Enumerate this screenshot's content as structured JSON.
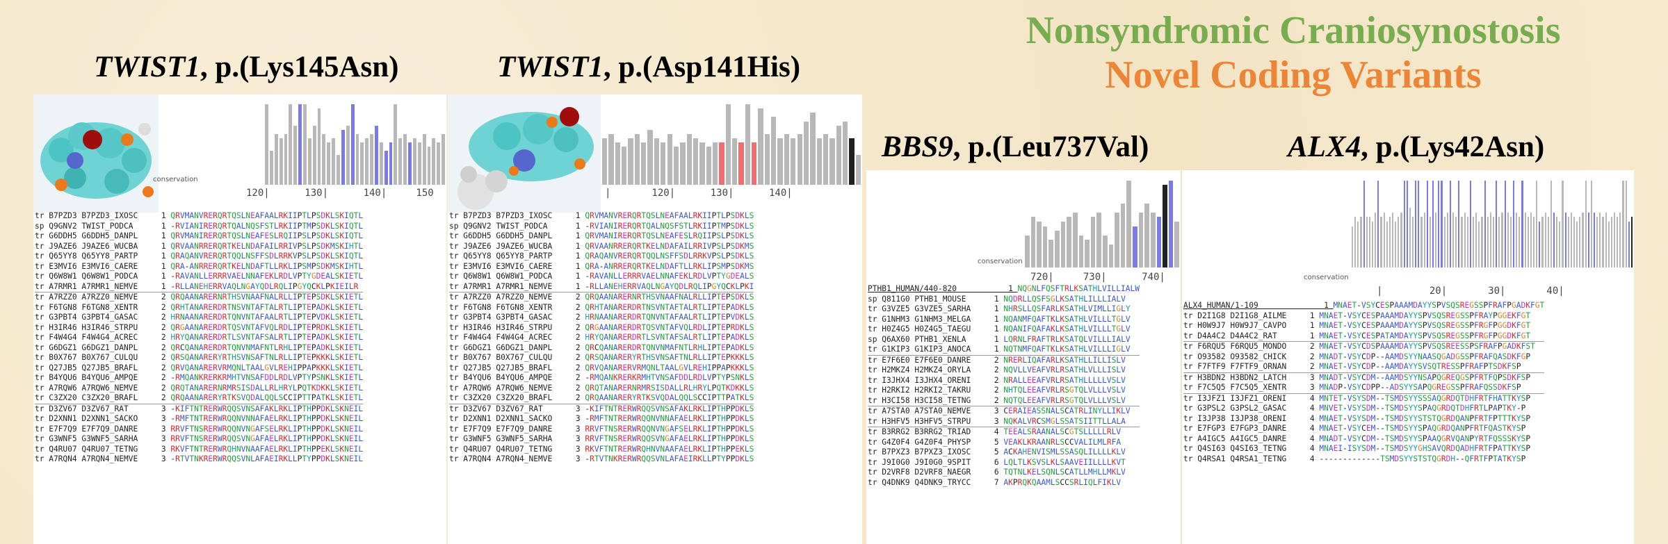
{
  "header": {
    "line1": "Nonsyndromic Craniosynostosis",
    "line2": "Novel Coding Variants"
  },
  "colors": {
    "green": "#78ad4f",
    "orange": "#ec8537",
    "blue_bar": "#7b7be8",
    "red_bar": "#ec7070",
    "grey_bar": "#b8b8b8"
  },
  "panels": [
    {
      "gene": "TWIST1",
      "variant": ", p.(Lys145Asn)",
      "cons_label": "conservation",
      "ruler": "120|      130|      140|     150",
      "bars": [
        0,
        0,
        0,
        0,
        0,
        0,
        0,
        0,
        0,
        0,
        0,
        0,
        0,
        0,
        0,
        0,
        0,
        0,
        0,
        0,
        0,
        0,
        0.95,
        0.4,
        0.6,
        0.55,
        0.6,
        0.95,
        0.7,
        0.95,
        0.95,
        0.55,
        0.7,
        0.9,
        0.6,
        0.5,
        0.55,
        0.35,
        0.65,
        0.7,
        0.95,
        0.6,
        0.5,
        0.55,
        0.6,
        0.7,
        0.5,
        0.4,
        0.5,
        0.95,
        0.55,
        0.6,
        0.5,
        0.55,
        0.5,
        0.6,
        0.45,
        0.55,
        0.5,
        0.6
      ],
      "bar_colors": "bggggbgbbgggbgggggggbggggggggbggggggggbg",
      "rows": [
        [
          "tr",
          "B7PZD3",
          "B7PZD3_IXOSC",
          "1",
          "QRVMANVRERQRTQSLNEAFAALRKIIPTLPSDKLSKIQTL"
        ],
        [
          "sp",
          "Q9GNV2",
          "TWIST_PODCA",
          "1",
          "-RVIANIRERQRTQALNQSFSTLRKIIPTMPSDKLSKIQTL"
        ],
        [
          "tr",
          "G6DDH5",
          "G6DDH5_DANPL",
          "1",
          "QRVMANIRERQRTQSLNEAFESLRQIIPSLPSDKLSKIQTL"
        ],
        [
          "tr",
          "J9AZE6",
          "J9AZE6_WUCBA",
          "1",
          "QRVAANRRERQRTKELNDAFAILRRIVPSLPSDKMSKIHTL"
        ],
        [
          "tr",
          "Q65YY8",
          "Q65YY8_PARTP",
          "1",
          "QRAQANVRERQRTQQLNSFFSDLRRKVPSLPSDKLSKIQTL"
        ],
        [
          "tr",
          "E3MVI6",
          "E3MVI6_CAERE",
          "1",
          "QRA-ANRRERQRTKELNDAFTLLRKLIPSMPSDKMSKIHTL"
        ],
        [
          "tr",
          "Q6W8W1",
          "Q6W8W1_PODCA",
          "1",
          "-RAVANLLERRRVAELNNAFEKLRDLVPTYGDEALSKIETL"
        ],
        [
          "tr",
          "A7RMR1",
          "A7RMR1_NEMVE",
          "1",
          "-RLLANEHERRVAQLNGAYQDLRQLIPGYQCKLPKIEILR"
        ],
        [
          "tr",
          "A7RZZ0",
          "A7RZZ0_NEMVE",
          "2",
          "QRQAANARERNRTHSVNAAFNALRLLIPTEPSDKLSKIETL",
          "sep"
        ],
        [
          "tr",
          "F6TGN8",
          "F6TGN8_XENTR",
          "2",
          "QRHTANARERDRTNSVNTAFTALRTLIPTEPADKLSKIETL"
        ],
        [
          "tr",
          "G3PBT4",
          "G3PBT4_GASAC",
          "2",
          "HRNAANARERDRTQNVNTAFAALRTLIPTEPVDKLSKIETL"
        ],
        [
          "tr",
          "H3IR46",
          "H3IR46_STRPU",
          "2",
          "QRGAANARERDRTQSVNTAFVQLRDLIPTEPRDKLSKIETL"
        ],
        [
          "tr",
          "F4W4G4",
          "F4W4G4_ACREC",
          "2",
          "HRYQANARERDRTLSVNTAFSALRTLIPTEPADKLSKIETL"
        ],
        [
          "tr",
          "G6DGZ1",
          "G6DGZ1_DANPL",
          "2",
          "QRCQANARERDRTQNVNMAFNTLRHLIPTEPADKLSKIETL"
        ],
        [
          "tr",
          "B0X767",
          "B0X767_CULQU",
          "2",
          "QRSQANARERYRTHSVNSAFTNLRLLIPTEPKKKLSKIETL"
        ],
        [
          "tr",
          "Q27JB5",
          "Q27JB5_BRAFL",
          "2",
          "QRVQANARERVRMQNLTAALGVLREHIPPAPKKKLSKIETL"
        ],
        [
          "tr",
          "B4YQU6",
          "B4YQU6_AMPQE",
          "2",
          "-RMQANKRERKRMHTVNSAFDDLRDLVPTYPSNKLSKIETL"
        ],
        [
          "tr",
          "A7RQW6",
          "A7RQW6_NEMVE",
          "2",
          "QRQTANARERNRMRSISDALLRLHRYLPQTKDKKLSKIETL"
        ],
        [
          "tr",
          "C3ZX20",
          "C3ZX20_BRAFL",
          "2",
          "QRQAANARERYRTKSVQDALQQLSCCIPTTPATKLSKIETL"
        ],
        [
          "tr",
          "D3ZV67",
          "D3ZV67_RAT",
          "3",
          "-KIFTNTRERWRQQSVNSAFAKLRKLIPTHPPDKLSKNEIL",
          "sep"
        ],
        [
          "tr",
          "D2XNN1",
          "D2XNN1_SACKO",
          "3",
          "-RMFTNTRERWRQQNVNNAFAELRKLIPTHPPDKLSKNEIL"
        ],
        [
          "tr",
          "E7F7Q9",
          "E7F7Q9_DANRE",
          "3",
          "RRVFTNSRERWRQQNVNGAFSELRKLIPTHPPDKLSKNEIL"
        ],
        [
          "tr",
          "G3WNF5",
          "G3WNF5_SARHA",
          "3",
          "RRVFTNSRERWRQQSVNGAFAELRKLIPTHPPDKLSKNEIL"
        ],
        [
          "tr",
          "Q4RU07",
          "Q4RU07_TETNG",
          "3",
          "RKVFTNTRERWRQHNVNAAFAELRKLIPTHPPEKLSKNEIL"
        ],
        [
          "tr",
          "A7RQN4",
          "A7RQN4_NEMVE",
          "3",
          "-RTVTNKRERWRQQSVNLAFAEIRKLLPTYPPDKLSKNEIL"
        ]
      ]
    },
    {
      "gene": "TWIST1",
      "variant": ", p.(Asp141His)",
      "cons_label": "",
      "ruler": "|       120|      130|      140|",
      "bars": [
        0.55,
        0.6,
        0.5,
        0.45,
        0.55,
        0.6,
        0.5,
        0.65,
        0.55,
        0.5,
        0.6,
        0.45,
        0.5,
        0.6,
        0.55,
        0.5,
        0.45,
        0.5,
        0.5,
        0.95,
        0.55,
        0.5,
        0.95,
        0.5,
        0.9,
        0.6,
        0.8,
        0.55,
        0.6,
        0.55,
        0.6,
        0.75,
        0.85,
        0.55,
        0.6,
        0.55,
        0.7,
        0.75,
        0.55,
        0.35
      ],
      "bar_colors": "ggggggggggggggggggrggrgrggggggggggggggkg",
      "rows": [
        [
          "tr",
          "B7PZD3",
          "B7PZD3_IXOSC",
          "1",
          "QRVMANVRERQRTQSLNEAFAALRKIIPTLPSDKLS"
        ],
        [
          "sp",
          "Q9GNV2",
          "TWIST_PODCA",
          "1",
          "-RVIANIRERQRTQALNQSFSTLRKIIPTMPSDKLS"
        ],
        [
          "tr",
          "G6DDH5",
          "G6DDH5_DANPL",
          "1",
          "QRVMANIRERQRTQSLNEAFESLRQIIPSLPSDKLS"
        ],
        [
          "tr",
          "J9AZE6",
          "J9AZE6_WUCBA",
          "1",
          "QRVAANRRERQRTKELNDAFAILRRIVPSLPSDKMS"
        ],
        [
          "tr",
          "Q65YY8",
          "Q65YY8_PARTP",
          "1",
          "QRAQANVRERQRTQQLNSFFSDLRRKVPSLPSDKLS"
        ],
        [
          "tr",
          "E3MVI6",
          "E3MVI6_CAERE",
          "1",
          "QRA-ANRRERQRTKELNDAFTLLRKLIPSMPSDKMS"
        ],
        [
          "tr",
          "Q6W8W1",
          "Q6W8W1_PODCA",
          "1",
          "-RAVANLLERRRVAELNNAFEKLRDLVPTYGDEALS"
        ],
        [
          "tr",
          "A7RMR1",
          "A7RMR1_NEMVE",
          "1",
          "-RLLANEHERRVAQLNGAYQDLRQLIPGYQCKLPKI"
        ],
        [
          "tr",
          "A7RZZ0",
          "A7RZZ0_NEMVE",
          "2",
          "QRQAANARERNRTHSVNAAFNALRLLIPTEPSDKLS",
          "sep"
        ],
        [
          "tr",
          "F6TGN8",
          "F6TGN8_XENTR",
          "2",
          "QRHTANARERDRTNSVNTAFTALRTLIPTEPADKLS"
        ],
        [
          "tr",
          "G3PBT4",
          "G3PBT4_GASAC",
          "2",
          "HRNAANARERDRTQNVNTAFAALRTLIPTEPVDKLS"
        ],
        [
          "tr",
          "H3IR46",
          "H3IR46_STRPU",
          "2",
          "QRGAANARERDRTQSVNTAFVQLRDLIPTEPRDKLS"
        ],
        [
          "tr",
          "F4W4G4",
          "F4W4G4_ACREC",
          "2",
          "HRYQANARERDRTLSVNTAFSALRTLIPTEPADKLS"
        ],
        [
          "tr",
          "G6DGZ1",
          "G6DGZ1_DANPL",
          "2",
          "QRCQANARERDRTQNVNMAFNTLRHLIPTEPADKLS"
        ],
        [
          "tr",
          "B0X767",
          "B0X767_CULQU",
          "2",
          "QRSQANARERYRTHSVNSAFTNLRLLIPTEPKKKLS"
        ],
        [
          "tr",
          "Q27JB5",
          "Q27JB5_BRAFL",
          "2",
          "QRVQANARERVRMQNLTAALGVLREHIPPAPKKKLS"
        ],
        [
          "tr",
          "B4YQU6",
          "B4YQU6_AMPQE",
          "2",
          "-RMQANKRERKRMHTVNSAFDDLRDLVPTYPSNKLS"
        ],
        [
          "tr",
          "A7RQW6",
          "A7RQW6_NEMVE",
          "2",
          "QRQTANARERNRMRSISDALLRLHRYLPQTKDKKLS"
        ],
        [
          "tr",
          "C3ZX20",
          "C3ZX20_BRAFL",
          "2",
          "QRQAANARERYRTKSVQDALQQLSCCIPTTPATKLS"
        ],
        [
          "tr",
          "D3ZV67",
          "D3ZV67_RAT",
          "3",
          "-KIFTNTRERWRQQSVNSAFAKLRKLIPTHPPDKLS",
          "sep"
        ],
        [
          "tr",
          "D2XNN1",
          "D2XNN1_SACKO",
          "3",
          "-RMFTNTRERWRQQNVNNAFAELRKLIPTHPPDKLS"
        ],
        [
          "tr",
          "E7F7Q9",
          "E7F7Q9_DANRE",
          "3",
          "RRVFTNSRERWRQQNVNGAFSELRKLIPTHPPDKLS"
        ],
        [
          "tr",
          "G3WNF5",
          "G3WNF5_SARHA",
          "3",
          "RRVFTNSRERWRQQSVNGAFAELRKLIPTHPPDKLS"
        ],
        [
          "tr",
          "Q4RU07",
          "Q4RU07_TETNG",
          "3",
          "RKVFTNTRERWRQHNVNAAFAELRKLIPTHPPEKLS"
        ],
        [
          "tr",
          "A7RQN4",
          "A7RQN4_NEMVE",
          "3",
          "-RTVTNKRERWRQQSVNLAFAEIRKLLPTYPPDKLS"
        ]
      ]
    },
    {
      "gene": "BBS9",
      "variant": ", p.(Leu737Val)",
      "cons_label": "conservation",
      "ruler": "720|     730|      740|",
      "bars": [
        0.35,
        0.55,
        0.5,
        0.45,
        0.3,
        0.4,
        0.5,
        0.55,
        0.6,
        0.35,
        0.3,
        0.55,
        0.6,
        0.35,
        0.25,
        0.6,
        0.7,
        0.95,
        0.45,
        0.6,
        0.7,
        0.6,
        0.55,
        0.9,
        0.95,
        0.5
      ],
      "bar_colors": "ggggggggggggggggggbgggbkbg",
      "header_row": [
        "PTHB1_HUMAN/440-820",
        "",
        "",
        "1",
        "NQGNLFQSFTRLKSATHLVILLIALW"
      ],
      "rows": [
        [
          "sp",
          "Q811G0",
          "PTHB1_MOUSE",
          "1",
          "NQDRLLQSFSGLKSATHLILLLIALV"
        ],
        [
          "tr",
          "G3VZE5",
          "G3VZE5_SARHA",
          "1",
          "NHRSLLQSFARLKSATHLVIMLLIGLY"
        ],
        [
          "tr",
          "G1NHM3",
          "G1NHM3_MELGA",
          "1",
          "NQANMFQAFTKLKSATHLVILLLTGLV"
        ],
        [
          "tr",
          "H0Z4G5",
          "H0Z4G5_TAEGU",
          "1",
          "NQANIFQAFAKLKSATHLVILLLTGLV"
        ],
        [
          "sp",
          "Q6AX60",
          "PTHB1_XENLA",
          "1",
          "LQRNLFRAFTRLKSATQLVILLLIALV"
        ],
        [
          "tr",
          "G1KIP3",
          "G1KIP3_ANOCA",
          "1",
          "NQTNMFQAFTKLKSATHLVILLLIGLV"
        ],
        [
          "tr",
          "E7F6E0",
          "E7F6E0_DANRE",
          "2",
          "NRERLIQAFARLKSATHLLILLISLV",
          "sep"
        ],
        [
          "tr",
          "H2MKZ4",
          "H2MKZ4_ORYLA",
          "2",
          "NQVLLVEAFVRLRSATHLVLLLISLV"
        ],
        [
          "tr",
          "I3JHX4",
          "I3JHX4_ORENI",
          "2",
          "NRALLEEAFVRLRSATHLLLLLVSLV"
        ],
        [
          "tr",
          "H2RKI2",
          "H2RKI2_TAKRU",
          "2",
          "NHTQLEEAFVRLRSGTQLVLLLVSLV"
        ],
        [
          "tr",
          "H3CI58",
          "H3CI58_TETNG",
          "2",
          "NQTQLEEAFVRLRSGTQLVLLLVSLV"
        ],
        [
          "tr",
          "A7STA0",
          "A7STA0_NEMVE",
          "3",
          "CERAIEASSNALSCATRLINYLLIKLV",
          "sep"
        ],
        [
          "tr",
          "H3HFV5",
          "H3HFV5_STRPU",
          "3",
          "NQKALVRCSMGLSSATSIITTLLALA"
        ],
        [
          "tr",
          "B3RRG2",
          "B3RRG2_TRIAD",
          "4",
          "TEEALSRAANALSCGTSLLLLLRLV",
          "sep"
        ],
        [
          "tr",
          "G4Z0F4",
          "G4Z0F4_PHYSP",
          "5",
          "VEAKLKRAANRLSCCVALILMLRFA"
        ],
        [
          "tr",
          "B7PXZ3",
          "B7PXZ3_IXOSC",
          "5",
          "ACKAHENVISMLSSASQLILLLLKLV"
        ],
        [
          "tr",
          "J9I0G0",
          "J9I0G0_9SPIT",
          "6",
          "LQLTLKSVSLKLSAAVEIILLLLKVT"
        ],
        [
          "tr",
          "D2VRF8",
          "D2VRF8_NAEGR",
          "6",
          "TQTNLKELSQNLSCATLLMHLLMKLV"
        ],
        [
          "tr",
          "Q4DNK9",
          "Q4DNK9_TRYCC",
          "7",
          "AKPRQKQAAMLSCCSRLIQLFIKLV"
        ]
      ]
    },
    {
      "gene": "ALX4",
      "variant": ", p.(Lys42Asn)",
      "cons_label": "conservation",
      "ruler": "|        20|       30|       40|",
      "bars": [
        0.45,
        0.55,
        0.5,
        0.55,
        0.95,
        0.55,
        0.55,
        0.5,
        0.6,
        0.95,
        0.55,
        0.6,
        0.5,
        0.55,
        0.6,
        0.5,
        0.55,
        0.6,
        0.95,
        0.95,
        0.65,
        0.55,
        0.95,
        0.95,
        0.55,
        0.6,
        0.95,
        0.55,
        0.95,
        0.6,
        0.95,
        0.95,
        0.55,
        0.6,
        0.95,
        0.6,
        0.55,
        0.95,
        0.55,
        0.6,
        0.55,
        0.95,
        0.55,
        0.6,
        0.5,
        0.55,
        0.95,
        0.55,
        0.6,
        0.55,
        0.95,
        0.55,
        0.6,
        0.95,
        0.6,
        0.55,
        0.95,
        0.6,
        0.55,
        0.95,
        0.6,
        0.55,
        0.6,
        0.55,
        0.95,
        0.5,
        0.55,
        0.6,
        0.55,
        0.95,
        0.6,
        0.55,
        0.5,
        0.95,
        0.6,
        0.55,
        0.6,
        0.55,
        0.5,
        0.55,
        0.6,
        0.95,
        0.6,
        0.95,
        0.6,
        0.55,
        0.6,
        0.55,
        0.6,
        0.5,
        0.55,
        0.6,
        0.55,
        0.6,
        0.95,
        0.95,
        0.5,
        0.55
      ],
      "bar_colors": "ggggbggggbggggggggbbggbbggbgbgbbggbggbgggbggggbgggbggbggbggbgggggbggggbgggbgggggggbgbgggggggggggbkgg",
      "header_row": [
        "ALX4_HUMAN/1-109",
        "",
        "",
        "1",
        "MNAET-VSYCESPAAAMDAYYSPVSQSREGSSPFRAFPGADKFGT"
      ],
      "rows": [
        [
          "tr",
          "D2I1G8",
          "D2I1G8_AILME",
          "1",
          "MNAET-VSYCESPAAAMDAYYSPVSQSREGSSPFRAYPGGEKFGT"
        ],
        [
          "tr",
          "H0W9J7",
          "H0W9J7_CAVPO",
          "1",
          "MNAET-VSYCESPAAAMDAYYSPVSQSREGSSPFRGFPGGDKFGT"
        ],
        [
          "tr",
          "D4A4C2",
          "D4A4C2_RAT",
          "1",
          "MNAET-VSYCESPATAMDAYYSPVSQSREGSSPFRGFPGGDKFGT"
        ],
        [
          "tr",
          "F6RQU5",
          "F6RQU5_MONDO",
          "2",
          "MNAET-VSYCDSPAAAMDAYYSPVSQSREESSPSFRAFPGADKFST",
          "sep"
        ],
        [
          "tr",
          "O93582",
          "O93582_CHICK",
          "2",
          "MNADT-VSYCDP--AAMDSYYNAASQGADGSSPFRAFQASDKFGP"
        ],
        [
          "tr",
          "F7FTF9",
          "F7FTF9_ORNAN",
          "2",
          "MNAET-VSYCDP--AAMDAYYSVSQTRESSPFRAFPTSDKFSP"
        ],
        [
          "tr",
          "H3BDN2",
          "H3BDN2_LATCH",
          "3",
          "MNADT-VSYCDM--AAMDSYYNSAPQGREQGSPFRTFQPSDKFSP",
          "sep"
        ],
        [
          "tr",
          "F7C5Q5",
          "F7C5Q5_XENTR",
          "3",
          "MNADP-VSYCDPP--ADSYYSAPQGREGSSPFRAFQSSDKFSP"
        ],
        [
          "tr",
          "I3JFZ1",
          "I3JFZ1_ORENI",
          "4",
          "MNTET-VSYSDM--TSMDSYYSSSAQGRDQTDHFRTFHATTKYSP",
          "sep"
        ],
        [
          "tr",
          "G3PSL2",
          "G3PSL2_GASAC",
          "4",
          "MNVET-VSYSDM--TSMDSYYSPAQGRDQTDHFRTLPAPTKY-P"
        ],
        [
          "tr",
          "I3JP38",
          "I3JP38_ORENI",
          "4",
          "MNAET-VSYSDM--TSMDSYYSTSTQGRDQANPFRTFPTTTKYSP"
        ],
        [
          "tr",
          "E7FGP3",
          "E7FGP3_DANRE",
          "4",
          "MNAET-VSYCEM--TSMDSYYSPAQGRDQANPFRTFQASTKYSP"
        ],
        [
          "tr",
          "A4IGC5",
          "A4IGC5_DANRE",
          "4",
          "MNADT-VSYCDM--TSMDSYYSPAAQGRVQANPYRTFQSSSKYSP"
        ],
        [
          "tr",
          "Q4SI63",
          "Q4SI63_TETNG",
          "4",
          "MNAEI-ISYSDM--TSMDSYYGHSAVQRDQADHFRTFPATTKYSP"
        ],
        [
          "tr",
          "Q4RSA1",
          "Q4RSA1_TETNG",
          "4",
          "-------------TSMDSYYSTSTQGRDH--QFRTFPTATKYSP"
        ]
      ]
    }
  ]
}
